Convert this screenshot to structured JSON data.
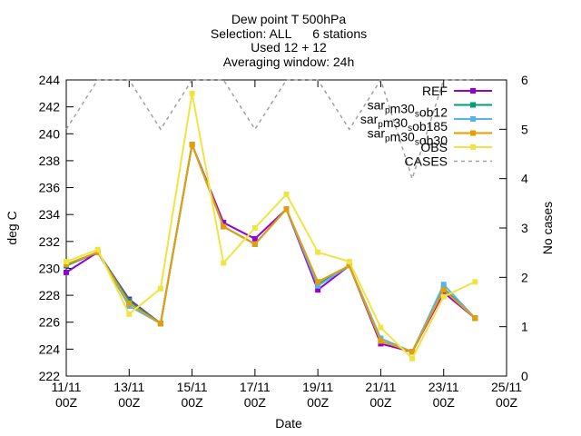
{
  "chart_data": {
    "type": "line",
    "title": [
      "Dew point T 500hPa",
      "Selection: ALL      6 stations",
      "Used 12 + 12",
      "Averaging window: 24h"
    ],
    "xlabel": "Date",
    "ylabel": "deg C",
    "y2label": "No cases",
    "x": [
      "11/11 00Z",
      "12/11 00Z",
      "13/11 00Z",
      "14/11 00Z",
      "15/11 00Z",
      "16/11 00Z",
      "17/11 00Z",
      "18/11 00Z",
      "19/11 00Z",
      "20/11 00Z",
      "21/11 00Z",
      "22/11 00Z",
      "23/11 00Z",
      "24/11 00Z"
    ],
    "xlim": [
      "11/11 00Z",
      "25/11 00Z"
    ],
    "xticks": [
      "11/11 00Z",
      "13/11 00Z",
      "15/11 00Z",
      "17/11 00Z",
      "19/11 00Z",
      "21/11 00Z",
      "23/11 00Z",
      "25/11 00Z"
    ],
    "ylim": [
      222,
      244
    ],
    "yticks": [
      222,
      224,
      226,
      228,
      230,
      232,
      234,
      236,
      238,
      240,
      242,
      244
    ],
    "y2lim": [
      0,
      6
    ],
    "y2ticks": [
      0,
      1,
      2,
      3,
      4,
      5,
      6
    ],
    "legend": "top-right",
    "series": [
      {
        "name": "REF",
        "color": "#9400d3",
        "values": [
          229.7,
          231.2,
          227.7,
          225.9,
          239.2,
          233.4,
          232.2,
          234.4,
          228.4,
          230.2,
          224.4,
          223.8,
          228.2,
          226.3
        ]
      },
      {
        "name": "sar_pm30_sob12",
        "color": "#009e73",
        "values": [
          230.2,
          231.2,
          227.6,
          225.9,
          239.2,
          233.1,
          231.8,
          234.4,
          228.8,
          230.2,
          224.6,
          223.8,
          228.5,
          226.3
        ]
      },
      {
        "name": "sar_pm30_sob185",
        "color": "#56b4e9",
        "values": [
          230.3,
          231.2,
          227.2,
          225.9,
          239.2,
          233.1,
          231.8,
          234.4,
          228.7,
          230.2,
          224.8,
          223.8,
          228.8,
          226.3
        ]
      },
      {
        "name": "sar_pm30_sob30",
        "color": "#e69f00",
        "values": [
          230.3,
          231.2,
          227.4,
          225.9,
          239.2,
          233.1,
          231.8,
          234.4,
          229.0,
          230.2,
          224.6,
          223.8,
          228.4,
          226.3
        ]
      },
      {
        "name": "OBS",
        "color": "#f0e442",
        "values": [
          230.5,
          231.4,
          226.6,
          228.5,
          243.0,
          230.4,
          233.0,
          235.5,
          231.2,
          230.5,
          225.6,
          223.3,
          227.9,
          229.0
        ]
      },
      {
        "name": "CASES",
        "color": "#a0a0a0",
        "axis": "y2",
        "dashed": true,
        "values": [
          5,
          6,
          6,
          5,
          6,
          6,
          5,
          6,
          6,
          5,
          6,
          4,
          6,
          6
        ]
      }
    ]
  }
}
